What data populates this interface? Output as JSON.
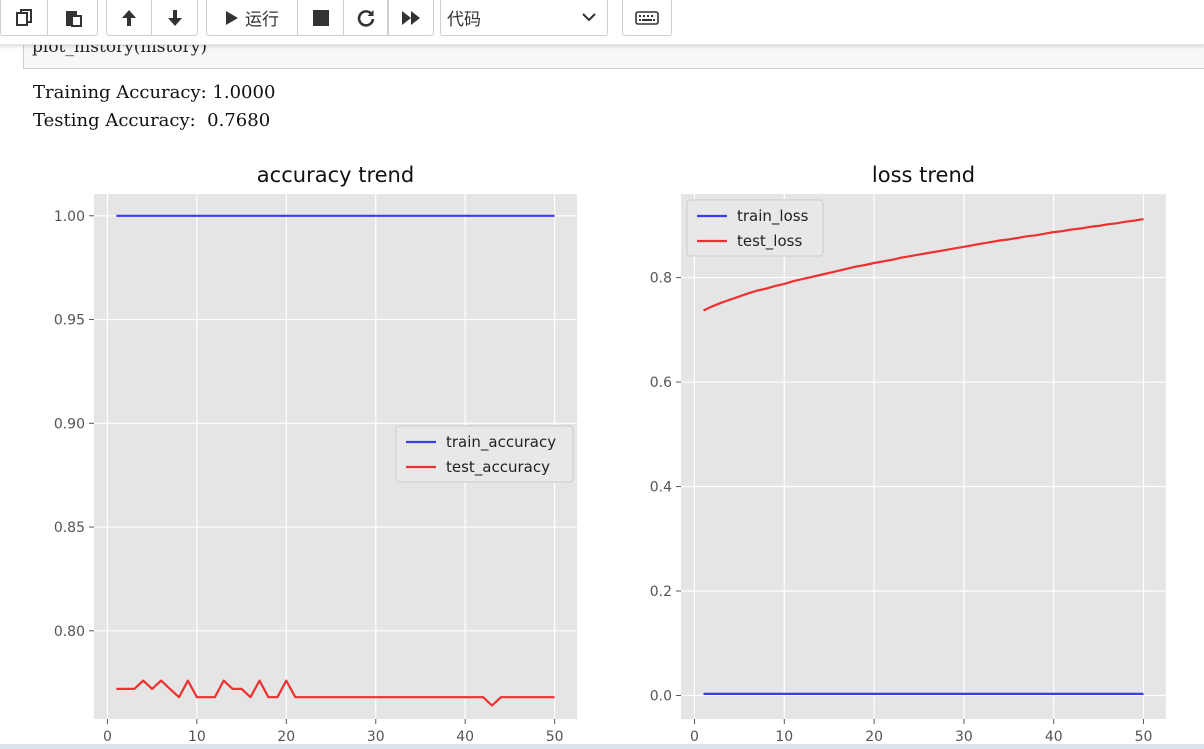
{
  "toolbar": {
    "copy_icon": "copy-icon",
    "paste_icon": "paste-icon",
    "up_icon": "arrow-up-icon",
    "down_icon": "arrow-down-icon",
    "run_label": "运行",
    "stop_icon": "stop-icon",
    "restart_icon": "restart-icon",
    "fastforward_icon": "fast-forward-icon",
    "cell_type": "代码",
    "keyboard_icon": "keyboard-icon"
  },
  "cell": {
    "code": "plot_history(history)"
  },
  "output": {
    "line1": "Training Accuracy: 1.0000",
    "line2": "Testing Accuracy:  0.7680"
  },
  "chart_data": [
    {
      "type": "line",
      "title": "accuracy trend",
      "xlabel": "",
      "ylabel": "",
      "xlim": [
        -1.5,
        52.5
      ],
      "ylim": [
        0.7575,
        1.0105
      ],
      "xticks": [
        "0",
        "10",
        "20",
        "30",
        "40",
        "50"
      ],
      "yticks": [
        "0.80",
        "0.85",
        "0.90",
        "0.95",
        "1.00"
      ],
      "grid": true,
      "legend": "center-right",
      "x": [
        1,
        2,
        3,
        4,
        5,
        6,
        7,
        8,
        9,
        10,
        11,
        12,
        13,
        14,
        15,
        16,
        17,
        18,
        19,
        20,
        21,
        22,
        23,
        24,
        25,
        26,
        27,
        28,
        29,
        30,
        31,
        32,
        33,
        34,
        35,
        36,
        37,
        38,
        39,
        40,
        41,
        42,
        43,
        44,
        45,
        46,
        47,
        48,
        49,
        50
      ],
      "series": [
        {
          "name": "train_accuracy",
          "color": "#3b3bf0",
          "values": [
            1.0,
            1.0,
            1.0,
            1.0,
            1.0,
            1.0,
            1.0,
            1.0,
            1.0,
            1.0,
            1.0,
            1.0,
            1.0,
            1.0,
            1.0,
            1.0,
            1.0,
            1.0,
            1.0,
            1.0,
            1.0,
            1.0,
            1.0,
            1.0,
            1.0,
            1.0,
            1.0,
            1.0,
            1.0,
            1.0,
            1.0,
            1.0,
            1.0,
            1.0,
            1.0,
            1.0,
            1.0,
            1.0,
            1.0,
            1.0,
            1.0,
            1.0,
            1.0,
            1.0,
            1.0,
            1.0,
            1.0,
            1.0,
            1.0,
            1.0
          ]
        },
        {
          "name": "test_accuracy",
          "color": "#ee3030",
          "values": [
            0.772,
            0.772,
            0.772,
            0.776,
            0.772,
            0.776,
            0.772,
            0.768,
            0.776,
            0.768,
            0.768,
            0.768,
            0.776,
            0.772,
            0.772,
            0.768,
            0.776,
            0.768,
            0.768,
            0.776,
            0.768,
            0.768,
            0.768,
            0.768,
            0.768,
            0.768,
            0.768,
            0.768,
            0.768,
            0.768,
            0.768,
            0.768,
            0.768,
            0.768,
            0.768,
            0.768,
            0.768,
            0.768,
            0.768,
            0.768,
            0.768,
            0.768,
            0.764,
            0.768,
            0.768,
            0.768,
            0.768,
            0.768,
            0.768,
            0.768
          ]
        }
      ]
    },
    {
      "type": "line",
      "title": "loss trend",
      "xlabel": "",
      "ylabel": "",
      "xlim": [
        -1.5,
        52.5
      ],
      "ylim": [
        -0.045,
        0.96
      ],
      "xticks": [
        "0",
        "10",
        "20",
        "30",
        "40",
        "50"
      ],
      "yticks": [
        "0.0",
        "0.2",
        "0.4",
        "0.6",
        "0.8"
      ],
      "grid": true,
      "legend": "top-left",
      "x": [
        1,
        2,
        3,
        4,
        5,
        6,
        7,
        8,
        9,
        10,
        11,
        12,
        13,
        14,
        15,
        16,
        17,
        18,
        19,
        20,
        21,
        22,
        23,
        24,
        25,
        26,
        27,
        28,
        29,
        30,
        31,
        32,
        33,
        34,
        35,
        36,
        37,
        38,
        39,
        40,
        41,
        42,
        43,
        44,
        45,
        46,
        47,
        48,
        49,
        50
      ],
      "series": [
        {
          "name": "train_loss",
          "color": "#3b3bf0",
          "values": [
            0.003,
            0.003,
            0.003,
            0.003,
            0.003,
            0.003,
            0.003,
            0.003,
            0.003,
            0.003,
            0.003,
            0.003,
            0.003,
            0.003,
            0.003,
            0.003,
            0.003,
            0.003,
            0.003,
            0.003,
            0.003,
            0.003,
            0.003,
            0.003,
            0.003,
            0.003,
            0.003,
            0.003,
            0.003,
            0.003,
            0.003,
            0.003,
            0.003,
            0.003,
            0.003,
            0.003,
            0.003,
            0.003,
            0.003,
            0.003,
            0.003,
            0.003,
            0.003,
            0.003,
            0.003,
            0.003,
            0.003,
            0.003,
            0.003,
            0.003
          ]
        },
        {
          "name": "test_loss",
          "color": "#ee3030",
          "values": [
            0.737,
            0.745,
            0.752,
            0.758,
            0.764,
            0.77,
            0.775,
            0.779,
            0.784,
            0.788,
            0.793,
            0.797,
            0.801,
            0.805,
            0.809,
            0.813,
            0.817,
            0.821,
            0.824,
            0.828,
            0.831,
            0.834,
            0.838,
            0.841,
            0.844,
            0.847,
            0.85,
            0.853,
            0.856,
            0.859,
            0.862,
            0.865,
            0.868,
            0.871,
            0.873,
            0.876,
            0.879,
            0.881,
            0.884,
            0.887,
            0.889,
            0.892,
            0.894,
            0.897,
            0.899,
            0.902,
            0.904,
            0.907,
            0.909,
            0.912
          ]
        }
      ]
    }
  ]
}
